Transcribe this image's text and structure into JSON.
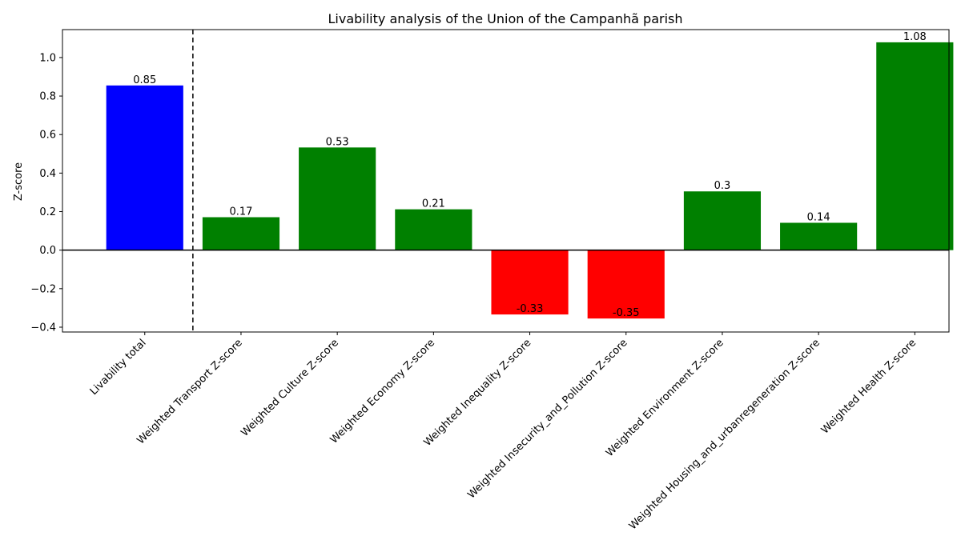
{
  "chart_data": {
    "type": "bar",
    "title": "Livability analysis of the Union of the Campanhã parish",
    "xlabel": "",
    "ylabel": "Z-score",
    "ylim": [
      -0.425,
      1.145
    ],
    "yticks": [
      -0.4,
      -0.2,
      0.0,
      0.2,
      0.4,
      0.6,
      0.8,
      1.0
    ],
    "ytick_labels": [
      "−0.4",
      "−0.2",
      "0.0",
      "0.2",
      "0.4",
      "0.6",
      "0.8",
      "1.0"
    ],
    "categories": [
      "Livability total",
      "Weighted Transport Z-score",
      "Weighted Culture Z-score",
      "Weighted Economy Z-score",
      "Weighted Inequality Z-score",
      "Weighted Insecurity_and_Pollution Z-score",
      "Weighted Environment Z-score",
      "Weighted Housing_and_urbanregeneration Z-score",
      "Weighted Health Z-score"
    ],
    "values": [
      0.855,
      0.171,
      0.533,
      0.212,
      -0.334,
      -0.355,
      0.305,
      0.142,
      1.079
    ],
    "value_labels": [
      "0.85",
      "0.17",
      "0.53",
      "0.21",
      "-0.33",
      "-0.35",
      "0.3",
      "0.14",
      "1.08"
    ],
    "colors": [
      "#0000ff",
      "#008000",
      "#008000",
      "#008000",
      "#ff0000",
      "#ff0000",
      "#008000",
      "#008000",
      "#008000"
    ],
    "zero_line": true,
    "separator_after_index": 0,
    "grid": false,
    "legend": null
  }
}
